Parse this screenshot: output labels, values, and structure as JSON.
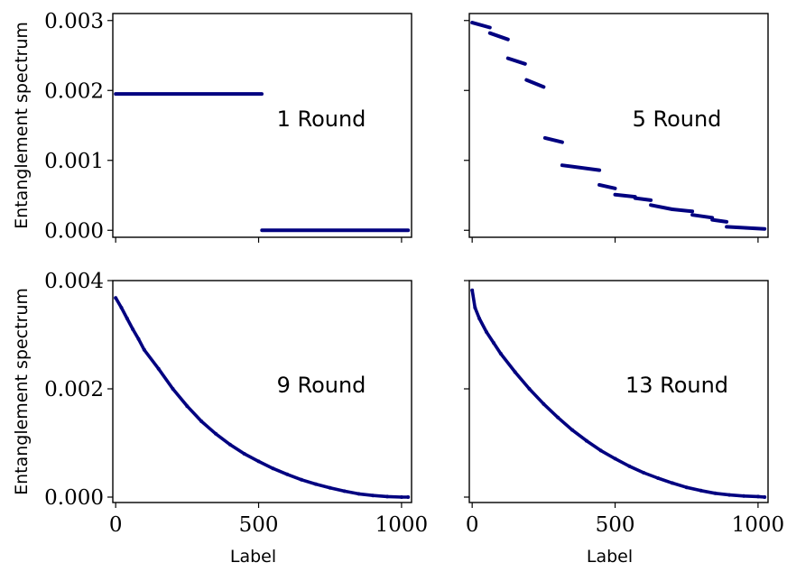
{
  "chart_data": [
    {
      "type": "scatter",
      "panel_label": "1 Round",
      "xlabel": "",
      "ylabel": "Entanglement spectrum",
      "xlim": [
        -10,
        1035
      ],
      "ylim": [
        -0.0001,
        0.0031
      ],
      "xticks": [
        0,
        500,
        1000
      ],
      "xtick_labels": [],
      "yticks": [
        0,
        0.001,
        0.002,
        0.003
      ],
      "ytick_labels": [
        "0.000",
        "0.001",
        "0.002",
        "0.003"
      ],
      "series": [
        {
          "color": "#000080",
          "segments": [
            {
              "x": [
                0,
                511
              ],
              "y": [
                0.00195,
                0.00195
              ]
            },
            {
              "x": [
                512,
                1023
              ],
              "y": [
                0.0,
                0.0
              ]
            }
          ]
        }
      ]
    },
    {
      "type": "scatter",
      "panel_label": "5 Round",
      "xlabel": "",
      "ylabel": "",
      "xlim": [
        -10,
        1035
      ],
      "ylim": [
        -0.0001,
        0.0031
      ],
      "xticks": [
        0,
        500,
        1000
      ],
      "xtick_labels": [],
      "yticks": [
        0,
        0.001,
        0.002,
        0.003
      ],
      "ytick_labels": [],
      "series": [
        {
          "color": "#000080",
          "segments": [
            {
              "x": [
                0,
                62
              ],
              "y": [
                0.00297,
                0.0029
              ]
            },
            {
              "x": [
                62,
                125
              ],
              "y": [
                0.00282,
                0.00273
              ]
            },
            {
              "x": [
                125,
                185
              ],
              "y": [
                0.00246,
                0.00238
              ]
            },
            {
              "x": [
                190,
                250
              ],
              "y": [
                0.00215,
                0.00205
              ]
            },
            {
              "x": [
                255,
                315
              ],
              "y": [
                0.00132,
                0.00126
              ]
            },
            {
              "x": [
                315,
                445
              ],
              "y": [
                0.00093,
                0.00086
              ]
            },
            {
              "x": [
                445,
                500
              ],
              "y": [
                0.00065,
                0.0006
              ]
            },
            {
              "x": [
                500,
                570
              ],
              "y": [
                0.00051,
                0.00048
              ]
            },
            {
              "x": [
                570,
                625
              ],
              "y": [
                0.00046,
                0.00043
              ]
            },
            {
              "x": [
                625,
                700
              ],
              "y": [
                0.00036,
                0.0003
              ]
            },
            {
              "x": [
                700,
                770
              ],
              "y": [
                0.0003,
                0.00027
              ]
            },
            {
              "x": [
                770,
                840
              ],
              "y": [
                0.00022,
                0.00018
              ]
            },
            {
              "x": [
                840,
                890
              ],
              "y": [
                0.00015,
                0.00012
              ]
            },
            {
              "x": [
                890,
                1023
              ],
              "y": [
                5e-05,
                2e-05
              ]
            }
          ]
        }
      ]
    },
    {
      "type": "scatter",
      "panel_label": "9 Round",
      "xlabel": "Label",
      "ylabel": "Entanglement spectrum",
      "xlim": [
        -10,
        1035
      ],
      "ylim": [
        -0.0001,
        0.004
      ],
      "xticks": [
        0,
        500,
        1000
      ],
      "xtick_labels": [
        "0",
        "500",
        "1000"
      ],
      "yticks": [
        0,
        0.002,
        0.004
      ],
      "ytick_labels": [
        "0.000",
        "0.002",
        "0.004"
      ],
      "series": [
        {
          "color": "#000080",
          "x": [
            0,
            20,
            40,
            60,
            80,
            100,
            150,
            200,
            250,
            300,
            350,
            400,
            450,
            500,
            550,
            600,
            650,
            700,
            750,
            800,
            850,
            900,
            950,
            1000,
            1023
          ],
          "y": [
            0.00368,
            0.0035,
            0.0033,
            0.0031,
            0.00292,
            0.00272,
            0.00237,
            0.002,
            0.00168,
            0.0014,
            0.00117,
            0.00097,
            0.0008,
            0.00066,
            0.00053,
            0.00042,
            0.00032,
            0.00024,
            0.00017,
            0.00011,
            6e-05,
            3e-05,
            1e-05,
            0.0,
            0.0
          ]
        }
      ]
    },
    {
      "type": "scatter",
      "panel_label": "13 Round",
      "xlabel": "Label",
      "ylabel": "",
      "xlim": [
        -10,
        1035
      ],
      "ylim": [
        -0.0001,
        0.004
      ],
      "xticks": [
        0,
        500,
        1000
      ],
      "xtick_labels": [
        "0",
        "500",
        "1000"
      ],
      "yticks": [
        0,
        0.002,
        0.004
      ],
      "ytick_labels": [],
      "series": [
        {
          "color": "#000080",
          "x": [
            0,
            10,
            25,
            50,
            75,
            100,
            150,
            200,
            250,
            300,
            350,
            400,
            450,
            500,
            550,
            600,
            650,
            700,
            750,
            800,
            850,
            900,
            950,
            1000,
            1023
          ],
          "y": [
            0.00382,
            0.0035,
            0.0033,
            0.00305,
            0.00285,
            0.00265,
            0.00231,
            0.002,
            0.00172,
            0.00147,
            0.00124,
            0.00104,
            0.00086,
            0.00071,
            0.00057,
            0.00045,
            0.00035,
            0.00026,
            0.00018,
            0.00012,
            7e-05,
            4e-05,
            2e-05,
            1e-05,
            0.0
          ]
        }
      ]
    }
  ]
}
